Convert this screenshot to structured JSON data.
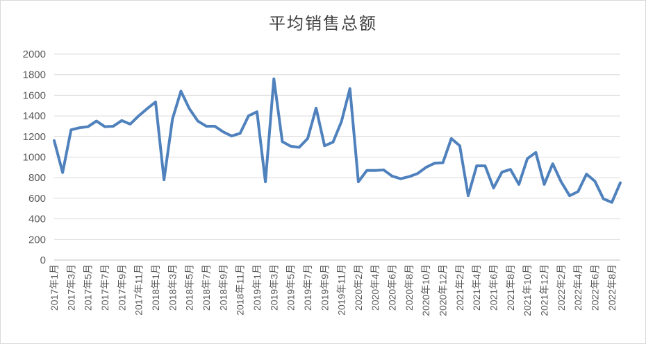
{
  "chart_data": {
    "type": "line",
    "title": "平均销售总额",
    "xlabel": "",
    "ylabel": "",
    "ylim": [
      0,
      2000
    ],
    "yticks": [
      0,
      200,
      400,
      600,
      800,
      1000,
      1200,
      1400,
      1600,
      1800,
      2000
    ],
    "grid": true,
    "legend": "none",
    "line_color": "#4f81bd",
    "categories": [
      "2017年1月",
      "2017年2月",
      "2017年3月",
      "2017年4月",
      "2017年5月",
      "2017年6月",
      "2017年7月",
      "2017年8月",
      "2017年9月",
      "2017年10月",
      "2017年11月",
      "2017年12月",
      "2018年1月",
      "2018年2月",
      "2018年3月",
      "2018年4月",
      "2018年5月",
      "2018年6月",
      "2018年7月",
      "2018年8月",
      "2018年9月",
      "2018年10月",
      "2018年11月",
      "2018年12月",
      "2019年1月",
      "2019年2月",
      "2019年3月",
      "2019年4月",
      "2019年5月",
      "2019年6月",
      "2019年7月",
      "2019年8月",
      "2019年9月",
      "2019年10月",
      "2019年11月",
      "2019年12月",
      "2020年2月",
      "2020年3月",
      "2020年4月",
      "2020年5月",
      "2020年6月",
      "2020年7月",
      "2020年8月",
      "2020年9月",
      "2020年10月",
      "2020年11月",
      "2020年12月",
      "2021年1月",
      "2021年2月",
      "2021年3月",
      "2021年4月",
      "2021年5月",
      "2021年6月",
      "2021年7月",
      "2021年8月",
      "2021年9月",
      "2021年10月",
      "2021年11月",
      "2021年12月",
      "2022年1月",
      "2022年2月",
      "2022年3月",
      "2022年4月",
      "2022年5月",
      "2022年6月",
      "2022年7月",
      "2022年8月",
      "2022年9月"
    ],
    "tick_labels": [
      "2017年1月",
      "2017年3月",
      "2017年5月",
      "2017年7月",
      "2017年9月",
      "2017年11月",
      "2018年1月",
      "2018年3月",
      "2018年5月",
      "2018年7月",
      "2018年9月",
      "2018年11月",
      "2019年1月",
      "2019年3月",
      "2019年5月",
      "2019年7月",
      "2019年9月",
      "2019年11月",
      "2020年2月",
      "2020年4月",
      "2020年6月",
      "2020年8月",
      "2020年10月",
      "2020年12月",
      "2021年2月",
      "2021年4月",
      "2021年6月",
      "2021年8月",
      "2021年10月",
      "2021年12月",
      "2022年2月",
      "2022年4月",
      "2022年6月",
      "2022年8月"
    ],
    "values": [
      1160,
      850,
      1265,
      1285,
      1295,
      1350,
      1295,
      1300,
      1355,
      1320,
      1400,
      1470,
      1535,
      780,
      1370,
      1640,
      1470,
      1350,
      1300,
      1300,
      1245,
      1205,
      1230,
      1400,
      1440,
      760,
      1760,
      1150,
      1105,
      1095,
      1180,
      1475,
      1110,
      1145,
      1345,
      1665,
      760,
      870,
      870,
      875,
      815,
      790,
      810,
      840,
      900,
      940,
      945,
      1180,
      1110,
      625,
      915,
      915,
      700,
      855,
      880,
      735,
      985,
      1045,
      735,
      935,
      760,
      625,
      665,
      835,
      765,
      595,
      560,
      750
    ]
  }
}
